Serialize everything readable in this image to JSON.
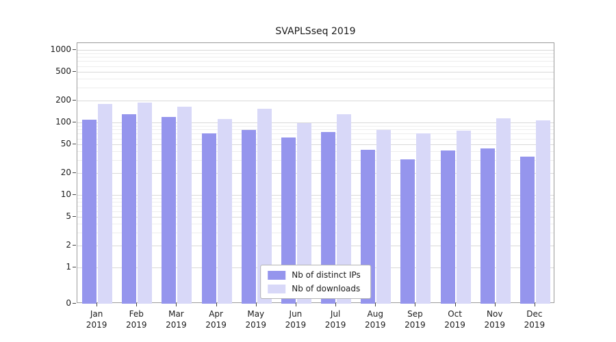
{
  "chart_data": {
    "type": "bar",
    "title": "SVAPLSseq 2019",
    "year_label": "2019",
    "categories": [
      "Jan",
      "Feb",
      "Mar",
      "Apr",
      "May",
      "Jun",
      "Jul",
      "Aug",
      "Sep",
      "Oct",
      "Nov",
      "Dec"
    ],
    "series": [
      {
        "key": "distinct-ips",
        "name": "Nb of distinct IPs",
        "color": "#9595ed",
        "values": [
          110,
          130,
          118,
          70,
          78,
          62,
          74,
          42,
          31,
          41,
          44,
          34
        ]
      },
      {
        "key": "downloads",
        "name": "Nb of downloads",
        "color": "#d8d8f8",
        "values": [
          180,
          188,
          165,
          112,
          155,
          97,
          130,
          78,
          70,
          77,
          113,
          107
        ]
      }
    ],
    "y_ticks": [
      0,
      1,
      2,
      5,
      10,
      20,
      50,
      100,
      200,
      500,
      1000
    ],
    "yscale": "symlog",
    "ylim": [
      0,
      1250
    ],
    "xlabel": "",
    "ylabel": "",
    "grid": true,
    "legend_position": "lower center"
  }
}
